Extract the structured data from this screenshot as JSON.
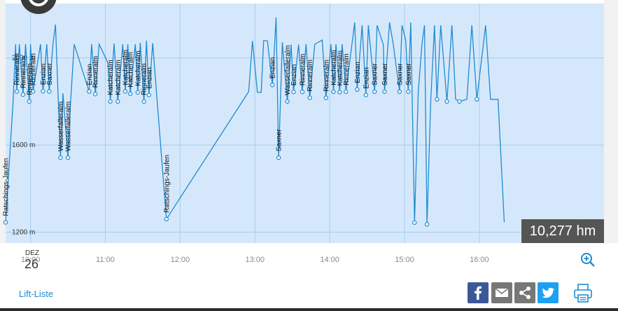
{
  "chart_data": {
    "type": "line",
    "title": "",
    "xlabel": "",
    "ylabel": "",
    "y_ticks": [
      "2000 m",
      "1600 m",
      "1200 m"
    ],
    "y_tick_values": [
      2000,
      1600,
      1200
    ],
    "ylim": [
      1150,
      2250
    ],
    "x_ticks": [
      "10:00",
      "11:00",
      "12:00",
      "13:00",
      "14:00",
      "15:00",
      "16:00"
    ],
    "xlim": [
      "09:40",
      "17:40"
    ],
    "grid": true,
    "line_color": "#1f8bd1",
    "x": [
      "09:40",
      "09:46",
      "09:48",
      "09:49",
      "09:51",
      "09:54",
      "09:56",
      "09:59",
      "10:00",
      "10:02",
      "10:08",
      "10:10",
      "10:13",
      "10:15",
      "10:18",
      "10:20",
      "10:22",
      "10:24",
      "10:26",
      "10:30",
      "10:32",
      "10:35",
      "10:47",
      "10:49",
      "10:52",
      "10:55",
      "11:02",
      "11:04",
      "11:07",
      "11:10",
      "11:14",
      "11:16",
      "11:18",
      "11:20",
      "11:24",
      "11:26",
      "11:28",
      "11:31",
      "11:33",
      "11:35",
      "11:38",
      "11:41",
      "11:49",
      "12:55",
      "12:58",
      "13:02",
      "13:05",
      "13:07",
      "13:10",
      "13:14",
      "13:17",
      "13:19",
      "13:22",
      "13:26",
      "13:29",
      "13:31",
      "13:35",
      "13:38",
      "13:41",
      "13:44",
      "13:48",
      "13:54",
      "13:57",
      "14:01",
      "14:03",
      "14:05",
      "14:08",
      "14:10",
      "14:13",
      "14:20",
      "14:22",
      "14:26",
      "14:29",
      "14:31",
      "14:36",
      "14:38",
      "14:43",
      "14:44",
      "14:48",
      "14:51",
      "14:56",
      "14:58",
      "15:01",
      "15:03",
      "15:05",
      "15:08",
      "15:11",
      "15:14",
      "15:16",
      "15:18",
      "15:21",
      "15:24",
      "15:26",
      "15:29",
      "15:34",
      "15:38",
      "15:41",
      "15:44",
      "15:50",
      "15:54",
      "15:58",
      "16:05",
      "16:09",
      "16:15",
      "16:20"
    ],
    "values": [
      1245,
      1800,
      2063,
      1846,
      2063,
      1832,
      2063,
      1800,
      2063,
      1846,
      2063,
      1847,
      2063,
      1846,
      2063,
      2153,
      1848,
      1542,
      1838,
      1542,
      1785,
      2063,
      1846,
      2063,
      1834,
      2063,
      1978,
      1800,
      2067,
      1800,
      2063,
      1846,
      2063,
      1836,
      2063,
      1842,
      2070,
      1800,
      2080,
      1830,
      2068,
      1845,
      1260,
      1845,
      2078,
      1842,
      1842,
      2080,
      2078,
      1876,
      2186,
      1542,
      2072,
      1800,
      2062,
      1844,
      2062,
      1844,
      2063,
      1817,
      2063,
      2082,
      1817,
      2063,
      1845,
      2063,
      1843,
      2063,
      1845,
      2163,
      1855,
      2150,
      1830,
      2150,
      1845,
      2150,
      2060,
      1845,
      2163,
      2060,
      1845,
      2150,
      2080,
      1845,
      2163,
      1244,
      1845,
      2063,
      2150,
      1236,
      1800,
      2150,
      1810,
      2150,
      1800,
      2150,
      1810,
      1800,
      1810,
      2150,
      1810,
      2150,
      1810,
      1810,
      1245
    ],
    "annotations": [
      "Ratschings-Jaufen",
      "Rinneralm",
      "Rinneralm",
      "Rinneralm",
      "Rinneralm",
      "Enzian",
      "Saxner",
      "Wasserfalleralm",
      "Wasserfalleralm",
      "Enzian",
      "Rinneralm",
      "Katcheralm",
      "Katcheralm",
      "Katcheralm",
      "Katcheralm",
      "Katcheralm",
      "Rinneralm",
      "Enzian",
      "Ratschings-Jaufen",
      "Enzian",
      "Saxner",
      "Wasserfalleralm",
      "Enzian",
      "Rinneralm",
      "Rinneralm",
      "Rinneralm",
      "Katcheralm",
      "Katcheralm",
      "Rinneralm",
      "Enzian",
      "Enzian",
      "Saxner",
      "Saxner",
      "Saxner",
      "Saxner"
    ],
    "total_label": "10,277 hm"
  },
  "date": {
    "month": "DEZ",
    "day": "26"
  },
  "footer": {
    "lift_list_label": "Lift-Liste"
  },
  "icons": {
    "zoom": "zoom-in-icon",
    "facebook": "facebook-icon",
    "mail": "mail-icon",
    "share": "share-icon",
    "twitter": "twitter-icon",
    "print": "print-icon",
    "logo": "logo-icon"
  },
  "colors": {
    "plot_background": "#d5e8fb",
    "line": "#1f8bd1",
    "total_box": "#555555",
    "link": "#1f8bd1",
    "facebook": "#3b5998",
    "twitter": "#1da1f2"
  }
}
